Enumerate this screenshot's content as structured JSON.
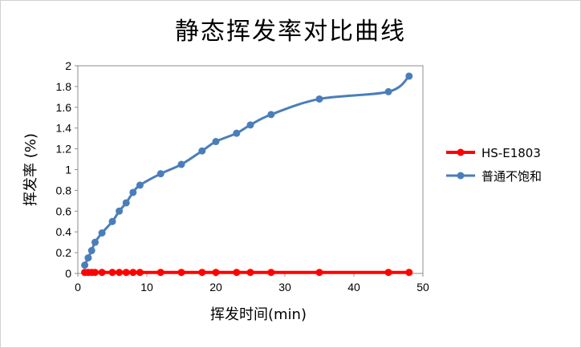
{
  "chart_data": {
    "type": "line",
    "title": "静态挥发率对比曲线",
    "xlabel": "挥发时间(min)",
    "ylabel": "挥发率 (%)",
    "xlim": [
      0,
      50
    ],
    "ylim": [
      0,
      2
    ],
    "xticks": [
      0,
      10,
      20,
      30,
      40,
      50
    ],
    "yticks": [
      0,
      0.2,
      0.4,
      0.6,
      0.8,
      1,
      1.2,
      1.4,
      1.6,
      1.8,
      2
    ],
    "grid": false,
    "legend_position": "right",
    "series": [
      {
        "name": "HS-E1803",
        "color": "#ff0000",
        "x": [
          1,
          1.5,
          2,
          2.5,
          3.5,
          5,
          6,
          7,
          8,
          9,
          12,
          15,
          18,
          20,
          23,
          25,
          28,
          35,
          45,
          48
        ],
        "y": [
          0.01,
          0.01,
          0.01,
          0.01,
          0.01,
          0.01,
          0.01,
          0.01,
          0.01,
          0.01,
          0.01,
          0.01,
          0.01,
          0.01,
          0.01,
          0.01,
          0.01,
          0.01,
          0.01,
          0.01
        ]
      },
      {
        "name": "普通不饱和",
        "color": "#4a7ebb",
        "x": [
          1,
          1.5,
          2,
          2.5,
          3.5,
          5,
          6,
          7,
          8,
          9,
          12,
          15,
          18,
          20,
          23,
          25,
          28,
          35,
          45,
          48
        ],
        "y": [
          0.08,
          0.15,
          0.22,
          0.3,
          0.39,
          0.5,
          0.6,
          0.68,
          0.78,
          0.85,
          0.96,
          1.05,
          1.18,
          1.27,
          1.35,
          1.43,
          1.53,
          1.68,
          1.75,
          1.9
        ]
      }
    ]
  }
}
